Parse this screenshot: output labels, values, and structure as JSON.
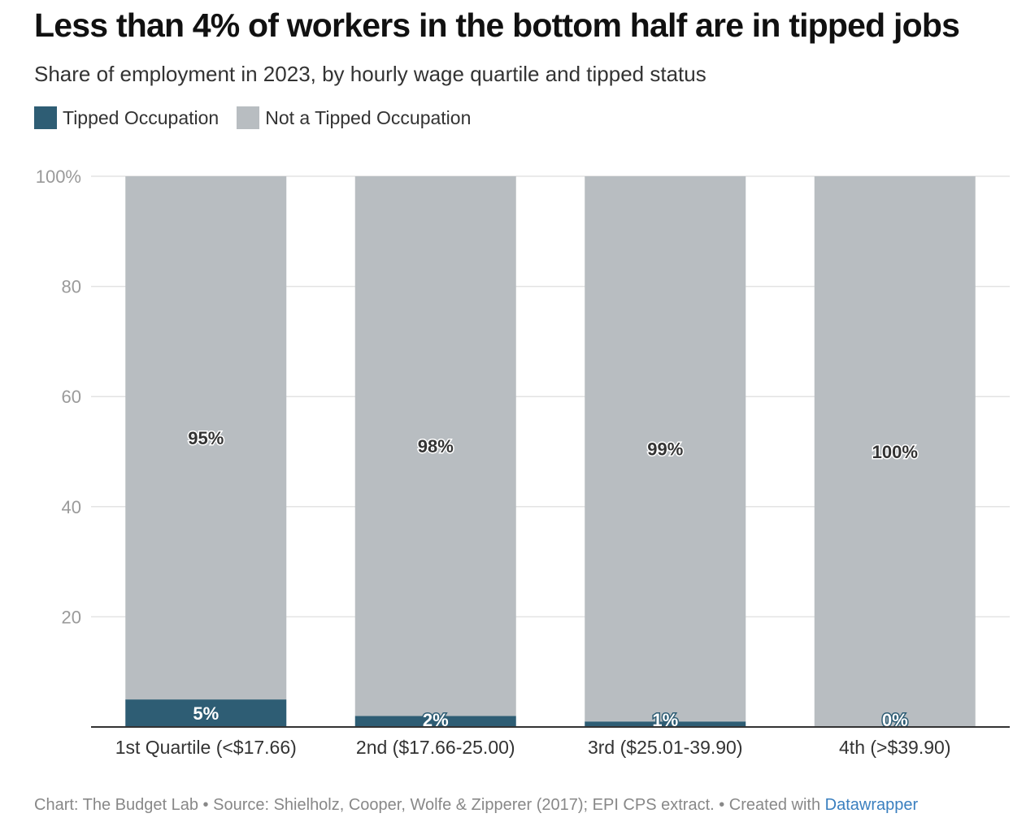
{
  "title": "Less than 4% of workers in the bottom half are in tipped jobs",
  "subtitle": "Share of employment in 2023, by hourly wage quartile and tipped status",
  "colors": {
    "tipped": "#2e5d74",
    "not_tipped": "#b8bdc1",
    "grid": "#e3e3e3",
    "axis": "#333333"
  },
  "footer": {
    "text": "Chart: The Budget Lab • Source: Shielholz, Cooper, Wolfe & Zipperer (2017); EPI CPS extract. • Created with ",
    "link": "Datawrapper"
  },
  "chart_data": {
    "type": "bar",
    "stacked": true,
    "categories": [
      "1st Quartile (<$17.66)",
      "2nd ($17.66-25.00)",
      "3rd ($25.01-39.90)",
      "4th (>$39.90)"
    ],
    "series": [
      {
        "name": "Tipped Occupation",
        "values": [
          5,
          2,
          1,
          0
        ],
        "labels": [
          "5%",
          "2%",
          "1%",
          "0%"
        ]
      },
      {
        "name": "Not a Tipped Occupation",
        "values": [
          95,
          98,
          99,
          100
        ],
        "labels": [
          "95%",
          "98%",
          "99%",
          "100%"
        ]
      }
    ],
    "ylim": [
      0,
      100
    ],
    "yticks": [
      {
        "value": 100,
        "label": "100%"
      },
      {
        "value": 80,
        "label": "80"
      },
      {
        "value": 60,
        "label": "60"
      },
      {
        "value": 40,
        "label": "40"
      },
      {
        "value": 20,
        "label": "20"
      }
    ],
    "legend_position": "top-left",
    "grid": true
  }
}
